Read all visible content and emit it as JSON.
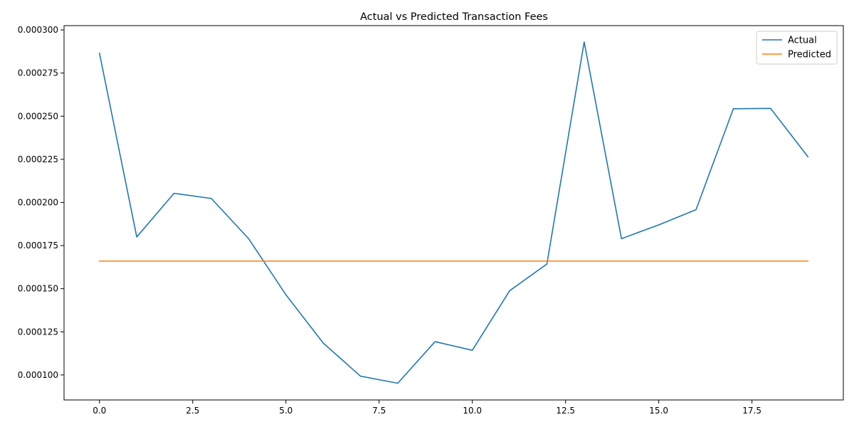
{
  "chart_data": {
    "type": "line",
    "title": "Actual vs Predicted Transaction Fees",
    "xlabel": "",
    "ylabel": "",
    "xlim": [
      -0.95,
      19.95
    ],
    "ylim": [
      8.55e-05,
      0.0003025
    ],
    "x_ticks": [
      0,
      2.5,
      5,
      7.5,
      10,
      12.5,
      15,
      17.5
    ],
    "x_tick_labels": [
      "0.0",
      "2.5",
      "5.0",
      "7.5",
      "10.0",
      "12.5",
      "15.0",
      "17.5"
    ],
    "y_ticks": [
      0.0001,
      0.000125,
      0.00015,
      0.000175,
      0.0002,
      0.000225,
      0.00025,
      0.000275,
      0.0003
    ],
    "y_tick_labels": [
      "0.000100",
      "0.000125",
      "0.000150",
      "0.000175",
      "0.000200",
      "0.000225",
      "0.000250",
      "0.000275",
      "0.000300"
    ],
    "grid": false,
    "legend": "top-right",
    "x": [
      0,
      1,
      2,
      3,
      4,
      5,
      6,
      7,
      8,
      9,
      10,
      11,
      12,
      13,
      14,
      15,
      16,
      17,
      18,
      19
    ],
    "series": [
      {
        "name": "Actual",
        "color": "#1f77b4",
        "values": [
          0.0002865,
          0.00018,
          0.0002053,
          0.0002023,
          0.000179,
          0.0001465,
          0.0001185,
          9.93e-05,
          9.52e-05,
          0.0001193,
          0.0001143,
          0.0001488,
          0.0001643,
          0.000293,
          0.000179,
          0.000187,
          0.0001958,
          0.0002543,
          0.0002545,
          0.0002265
        ]
      },
      {
        "name": "Predicted",
        "color": "#ff7f0e",
        "values": [
          0.000166,
          0.000166,
          0.000166,
          0.000166,
          0.000166,
          0.000166,
          0.000166,
          0.000166,
          0.000166,
          0.000166,
          0.000166,
          0.000166,
          0.000166,
          0.000166,
          0.000166,
          0.000166,
          0.000166,
          0.000166,
          0.000166,
          0.000166
        ]
      }
    ]
  }
}
